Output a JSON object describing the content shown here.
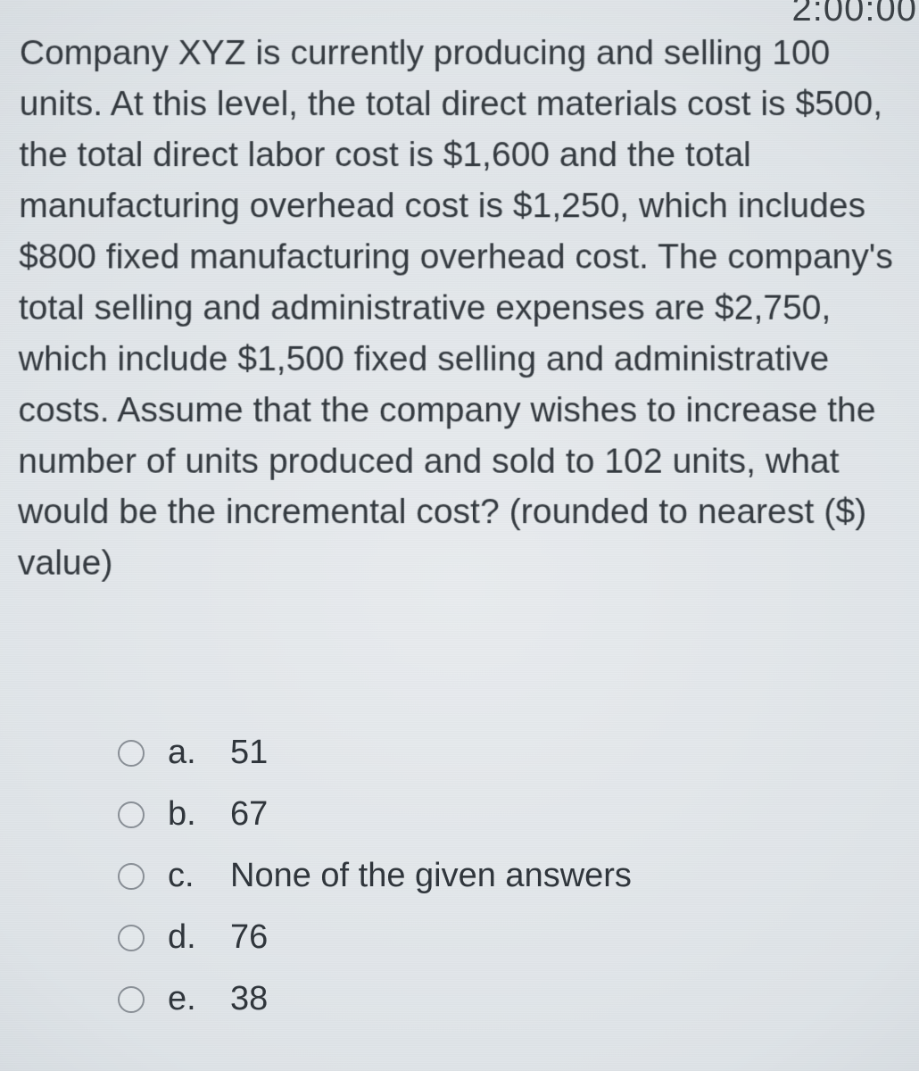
{
  "timer": "2:00:00",
  "question_text": "Company XYZ is currently producing and selling 100 units. At this level, the total direct materials cost is $500, the total direct labor cost is $1,600 and the total manufacturing overhead cost is $1,250, which includes $800 fixed manufacturing overhead cost. The company's total selling and administrative expenses are $2,750, which include $1,500 fixed selling and administrative costs. Assume that the company wishes to increase the number of units produced and sold to 102 units, what would be the incremental cost? (rounded to nearest ($) value)",
  "options": {
    "a": {
      "letter": "a.",
      "text": "51"
    },
    "b": {
      "letter": "b.",
      "text": "67"
    },
    "c": {
      "letter": "c.",
      "text": "None of the given answers"
    },
    "d": {
      "letter": "d.",
      "text": "76"
    },
    "e": {
      "letter": "e.",
      "text": "38"
    }
  },
  "colors": {
    "text": "#33393f",
    "radio_border": "#8a9097",
    "bg_center": "#e9ecef",
    "bg_edge": "#aab3bb"
  },
  "fontsize": {
    "question": 39,
    "option": 38,
    "timer": 40
  }
}
